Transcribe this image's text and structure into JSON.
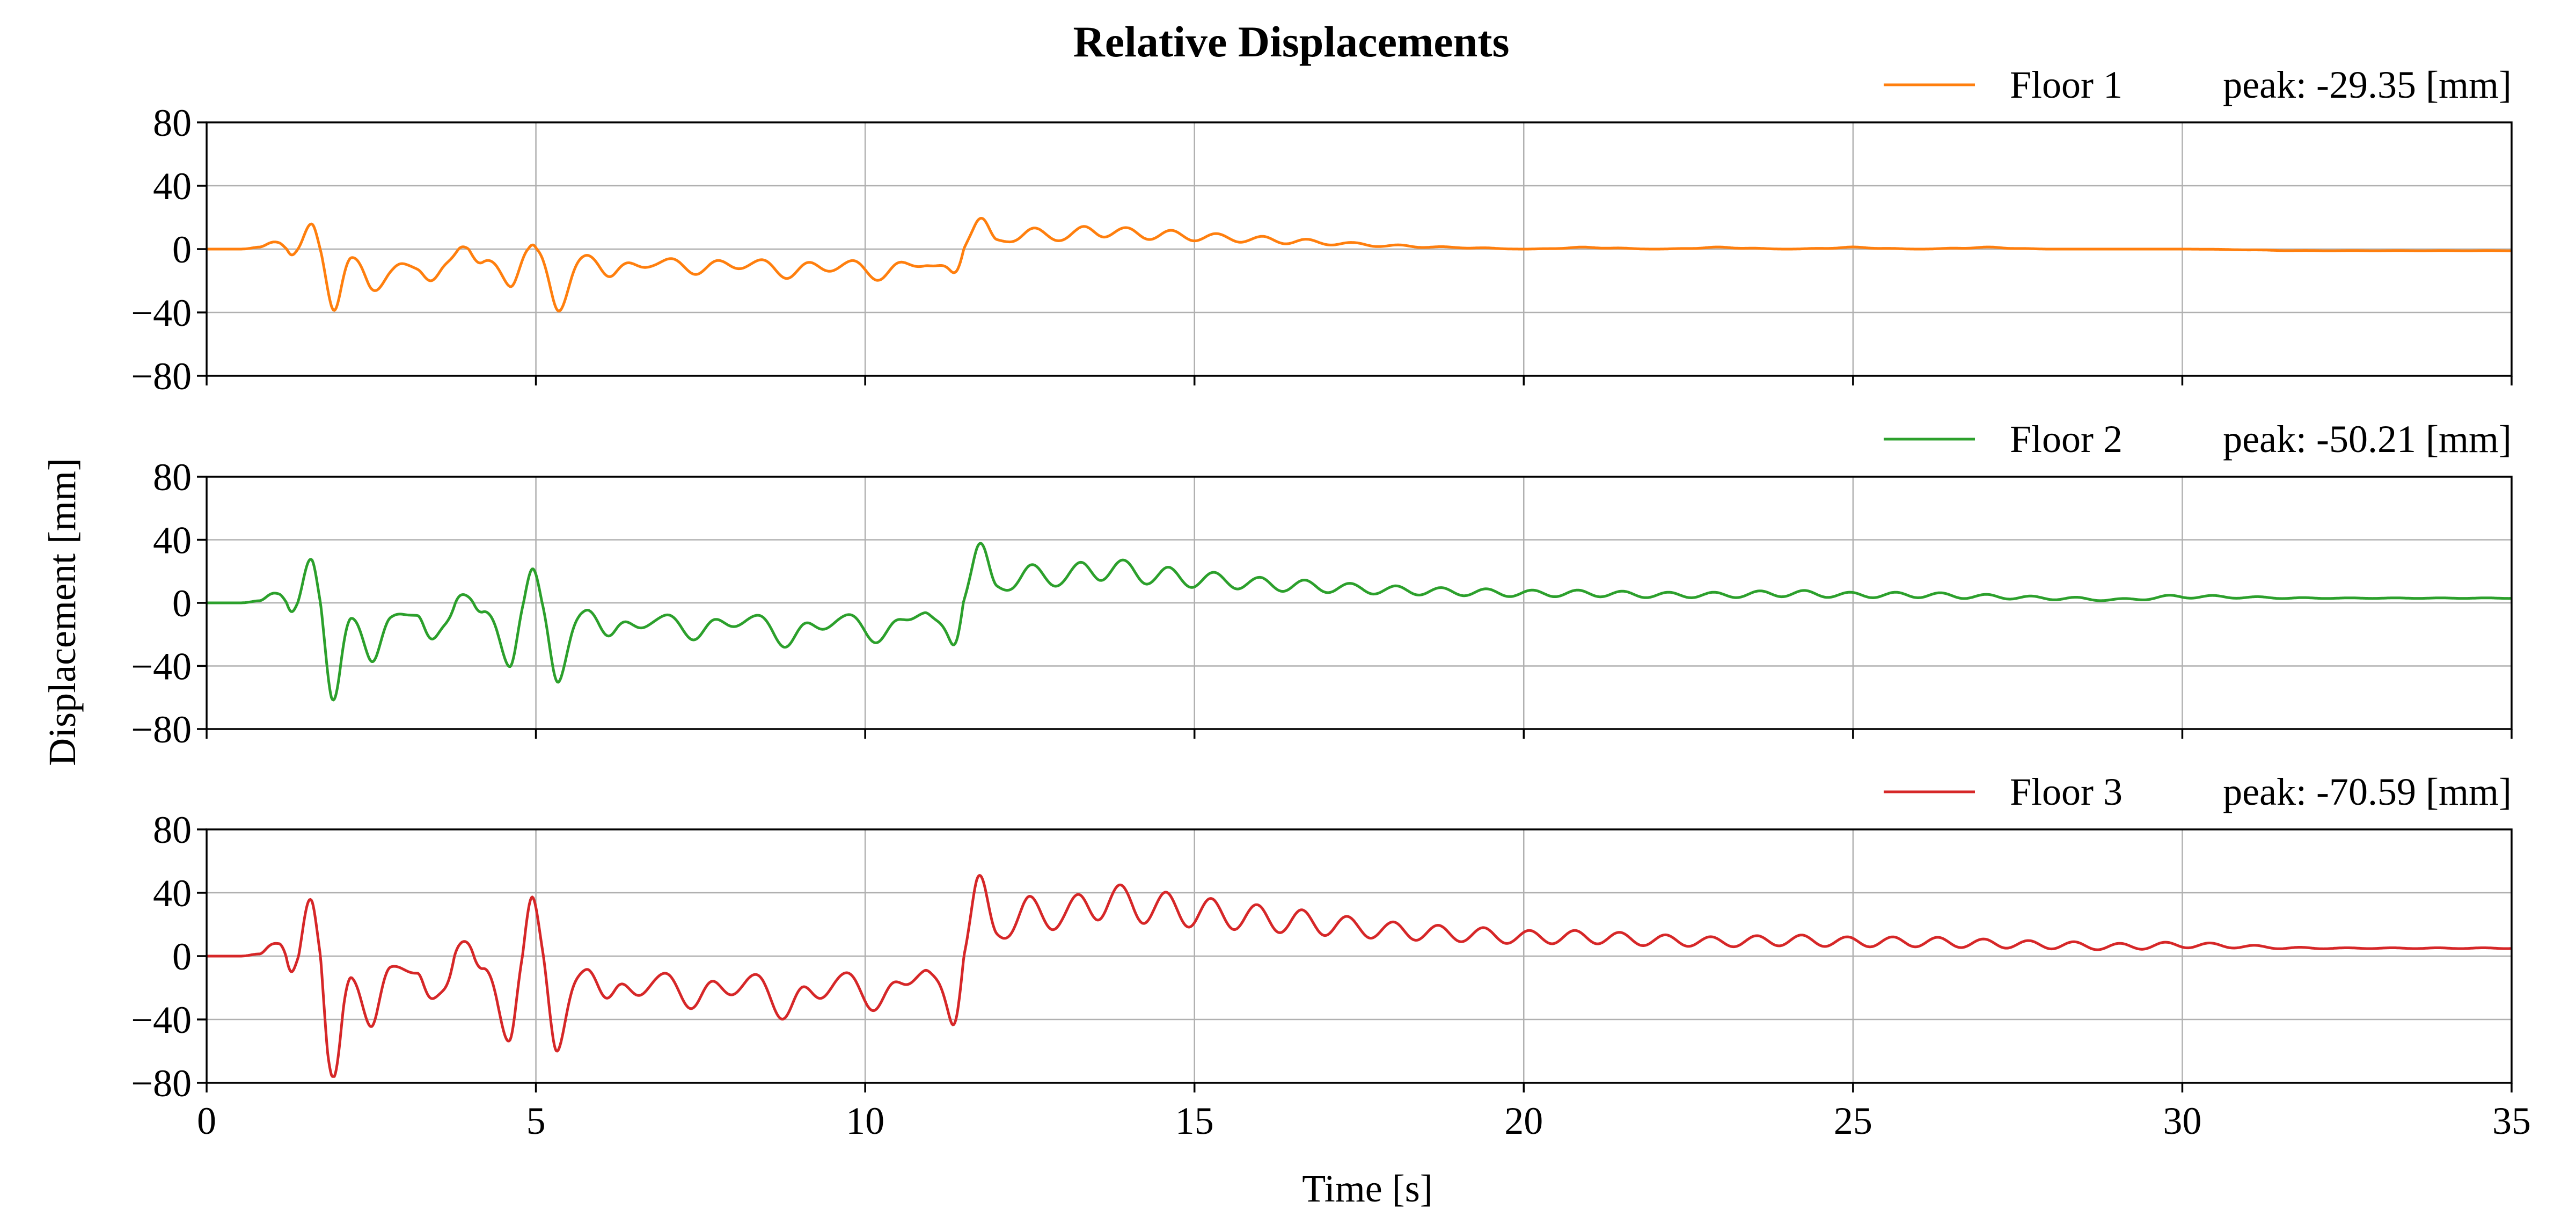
{
  "chart_data": {
    "type": "line",
    "title": "Relative Displacements",
    "xlabel": "Time [s]",
    "ylabel": "Displacement [mm]",
    "xlim": [
      0,
      35
    ],
    "ylim": [
      -80,
      80
    ],
    "xticks": [
      0,
      5,
      10,
      15,
      20,
      25,
      30,
      35
    ],
    "xtick_labels": [
      "0",
      "5",
      "10",
      "15",
      "20",
      "25",
      "30",
      "35"
    ],
    "yticks": [
      80,
      40,
      0,
      -40,
      -80
    ],
    "ytick_labels": [
      "80",
      "40",
      "0",
      "−40",
      "−80"
    ],
    "grid": true,
    "legend_position": "above-right",
    "series": [
      {
        "name": "Floor 1",
        "peak_label": "peak: -29.35 [mm]",
        "color": "#ff7f0e",
        "peak": -29.35,
        "peak_time": 1.95,
        "x": [
          0,
          0.5,
          0.8,
          1.1,
          1.3,
          1.6,
          1.95,
          2.2,
          2.5,
          2.8,
          3.2,
          3.5,
          3.9,
          4.2,
          4.6,
          4.95,
          5.35,
          5.8,
          6.2,
          6.8,
          7.5,
          8.2,
          8.9,
          9.6,
          10.3,
          10.9,
          11.3,
          11.7,
          12.0,
          12.5,
          13.0,
          13.5,
          14.0,
          14.5,
          15.0,
          15.5,
          16.0,
          16.5,
          17.0,
          17.5,
          18.0,
          19.0,
          20.0,
          21.0,
          22.0,
          23.0,
          24.0,
          25.0,
          26.0,
          27.0,
          28.0,
          29.0,
          30.0,
          32.0,
          35.0
        ],
        "y": [
          0,
          0,
          1,
          5,
          -3,
          12,
          -29.35,
          -8,
          -20,
          -16,
          -10,
          -20,
          2,
          -10,
          -18,
          2,
          -29,
          -5,
          -15,
          -8,
          -12,
          -9,
          -14,
          -10,
          -15,
          -8,
          -18,
          19,
          5,
          10,
          8,
          12,
          10,
          9,
          8,
          7,
          6,
          5,
          4,
          3,
          2,
          1,
          0,
          1,
          0,
          1,
          0,
          1,
          0,
          1,
          0,
          0,
          0,
          -1,
          -1
        ]
      },
      {
        "name": "Floor 2",
        "peak_label": "peak: -50.21 [mm]",
        "color": "#2ca02c",
        "peak": -50.21,
        "peak_time": 1.95,
        "x": [
          0,
          0.5,
          0.8,
          1.1,
          1.3,
          1.6,
          1.95,
          2.2,
          2.5,
          2.8,
          3.2,
          3.5,
          3.9,
          4.2,
          4.6,
          4.95,
          5.35,
          5.8,
          6.2,
          6.8,
          7.5,
          8.2,
          8.9,
          9.6,
          10.3,
          10.9,
          11.3,
          11.7,
          12.0,
          12.5,
          13.0,
          13.5,
          14.0,
          14.5,
          15.0,
          15.5,
          16.0,
          16.5,
          17.0,
          17.5,
          18.0,
          19.0,
          20.0,
          21.0,
          22.0,
          23.0,
          24.0,
          25.0,
          26.0,
          27.0,
          28.0,
          29.0,
          30.0,
          32.0,
          35.0
        ],
        "y": [
          0,
          0,
          1,
          8,
          -5,
          22,
          -50.21,
          -15,
          -28,
          -12,
          -6,
          -28,
          8,
          -8,
          -30,
          16,
          -38,
          -5,
          -20,
          -10,
          -18,
          -10,
          -22,
          -10,
          -20,
          -5,
          -28,
          33,
          10,
          18,
          16,
          22,
          20,
          17,
          15,
          14,
          12,
          11,
          10,
          9,
          8,
          7,
          6,
          6,
          5,
          5,
          6,
          5,
          5,
          4,
          3,
          2,
          4,
          3,
          3
        ]
      },
      {
        "name": "Floor 3",
        "peak_label": "peak: -70.59 [mm]",
        "color": "#d62728",
        "peak": -70.59,
        "peak_time": 1.95,
        "x": [
          0,
          0.5,
          0.8,
          1.1,
          1.3,
          1.6,
          1.95,
          2.2,
          2.5,
          2.8,
          3.2,
          3.5,
          3.9,
          4.2,
          4.6,
          4.95,
          5.35,
          5.8,
          6.2,
          6.8,
          7.5,
          8.2,
          8.9,
          9.6,
          10.3,
          10.9,
          11.3,
          11.7,
          12.0,
          12.5,
          13.0,
          13.5,
          14.0,
          14.5,
          15.0,
          15.5,
          16.0,
          16.5,
          17.0,
          17.5,
          18.0,
          19.0,
          20.0,
          21.0,
          22.0,
          23.0,
          24.0,
          25.0,
          26.0,
          27.0,
          28.0,
          29.0,
          30.0,
          32.0,
          35.0
        ],
        "y": [
          0,
          0,
          1,
          12,
          -10,
          31,
          -70.59,
          -20,
          -33,
          -10,
          -8,
          -38,
          14,
          -12,
          -40,
          28,
          -48,
          -8,
          -28,
          -15,
          -26,
          -16,
          -32,
          -15,
          -28,
          -8,
          -40,
          41,
          15,
          28,
          25,
          35,
          33,
          30,
          28,
          26,
          24,
          22,
          20,
          18,
          16,
          14,
          12,
          12,
          10,
          9,
          10,
          9,
          9,
          8,
          7,
          6,
          7,
          5,
          5
        ]
      }
    ]
  }
}
